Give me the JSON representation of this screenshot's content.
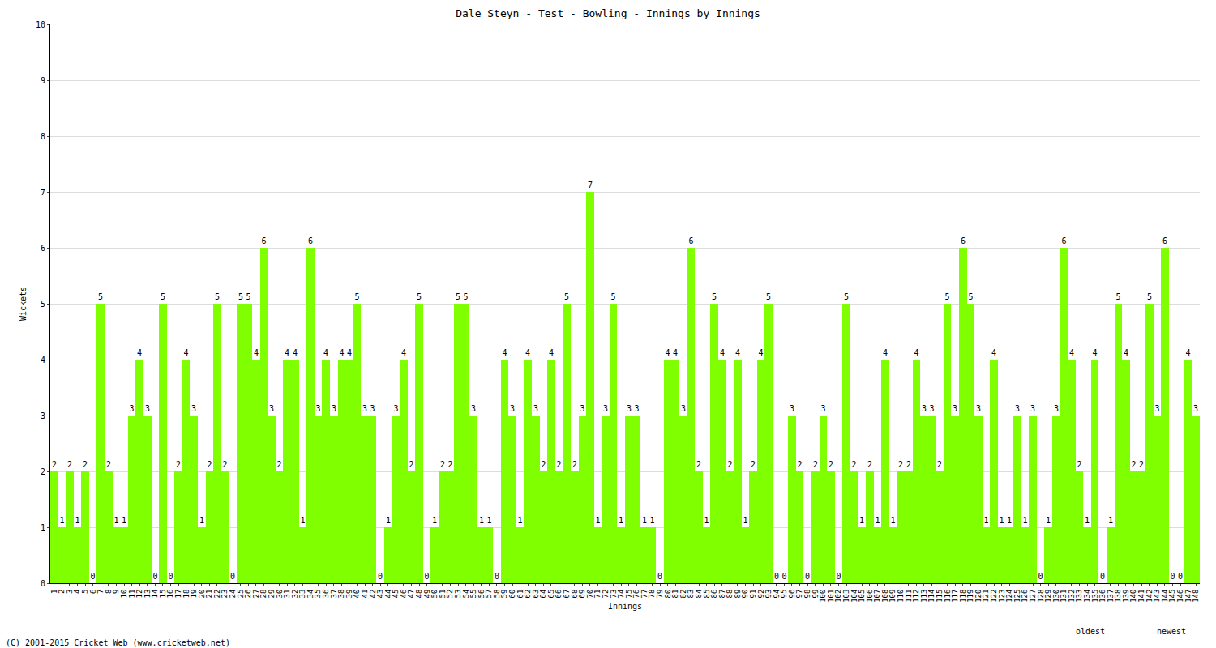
{
  "chart_data": {
    "type": "bar",
    "title": "Dale Steyn - Test - Bowling - Innings by Innings",
    "x_label": "Innings",
    "y_label": "Wickets",
    "categories": [
      "1",
      "2",
      "3",
      "4",
      "5",
      "6",
      "7",
      "8",
      "9",
      "10",
      "11",
      "12",
      "13",
      "14",
      "15",
      "16",
      "17",
      "18",
      "19",
      "20",
      "21",
      "22",
      "23",
      "24",
      "25",
      "26",
      "27",
      "28",
      "29",
      "30",
      "31",
      "32",
      "33",
      "34",
      "35",
      "36",
      "37",
      "38",
      "39",
      "40",
      "41",
      "42",
      "43",
      "44",
      "45",
      "46",
      "47",
      "48",
      "49",
      "50",
      "51",
      "52",
      "53",
      "54",
      "55",
      "56",
      "57",
      "58",
      "59",
      "60",
      "61",
      "62",
      "63",
      "64",
      "65",
      "66",
      "67",
      "68",
      "69",
      "70",
      "71",
      "72",
      "73",
      "74",
      "75",
      "76",
      "77",
      "78",
      "79",
      "80",
      "81",
      "82",
      "83",
      "84",
      "85",
      "86",
      "87",
      "88",
      "89",
      "90",
      "91",
      "92",
      "93",
      "94",
      "95",
      "96",
      "97",
      "98",
      "99",
      "100",
      "101",
      "102",
      "103",
      "104",
      "105",
      "106",
      "107",
      "108",
      "109",
      "110",
      "111",
      "112",
      "113",
      "114",
      "115",
      "116",
      "117",
      "118",
      "119",
      "120",
      "121",
      "122",
      "123",
      "124",
      "125",
      "126",
      "127",
      "128",
      "129",
      "130",
      "131",
      "132",
      "133",
      "134",
      "135",
      "136",
      "137",
      "138",
      "139",
      "140",
      "141",
      "142",
      "143",
      "144",
      "145",
      "146",
      "147",
      "148"
    ],
    "values": [
      2,
      1,
      2,
      1,
      2,
      0,
      5,
      2,
      1,
      1,
      3,
      4,
      3,
      0,
      5,
      0,
      2,
      4,
      3,
      1,
      2,
      5,
      2,
      0,
      5,
      5,
      4,
      6,
      3,
      2,
      4,
      4,
      1,
      6,
      3,
      4,
      3,
      4,
      4,
      5,
      3,
      3,
      0,
      1,
      3,
      4,
      2,
      5,
      0,
      1,
      2,
      2,
      5,
      5,
      3,
      1,
      1,
      0,
      4,
      3,
      1,
      4,
      3,
      2,
      4,
      2,
      5,
      2,
      3,
      7,
      1,
      3,
      5,
      1,
      3,
      3,
      1,
      1,
      0,
      4,
      4,
      3,
      6,
      2,
      1,
      5,
      4,
      2,
      4,
      1,
      2,
      4,
      5,
      0,
      0,
      3,
      2,
      0,
      2,
      3,
      2,
      0,
      5,
      2,
      1,
      2,
      1,
      4,
      1,
      2,
      2,
      4,
      3,
      3,
      2,
      5,
      3,
      6,
      5,
      3,
      1,
      4,
      1,
      1,
      3,
      1,
      3,
      0,
      1,
      3,
      6,
      4,
      2,
      1,
      4,
      0,
      1,
      5,
      4,
      2,
      2,
      5,
      3,
      6,
      0,
      0,
      4,
      3
    ],
    "color": "#7fff00",
    "ylim": [
      0,
      10
    ],
    "yticks": [
      0,
      1,
      2,
      3,
      4,
      5,
      6,
      7,
      8,
      9,
      10
    ],
    "grid": true,
    "data_labels": true,
    "annotations": [
      "oldest",
      "newest",
      "(C) 2001-2015 Cricket Web (www.cricketweb.net)"
    ]
  }
}
